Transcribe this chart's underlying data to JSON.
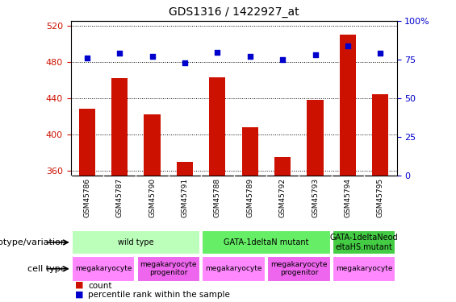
{
  "title": "GDS1316 / 1422927_at",
  "samples": [
    "GSM45786",
    "GSM45787",
    "GSM45790",
    "GSM45791",
    "GSM45788",
    "GSM45789",
    "GSM45792",
    "GSM45793",
    "GSM45794",
    "GSM45795"
  ],
  "count_values": [
    428,
    462,
    422,
    370,
    463,
    408,
    375,
    438,
    510,
    444
  ],
  "percentile_values": [
    76,
    79,
    77,
    73,
    80,
    77,
    75,
    78,
    84,
    79
  ],
  "ylim_left": [
    355,
    525
  ],
  "ylim_right": [
    0,
    100
  ],
  "yticks_left": [
    360,
    400,
    440,
    480,
    520
  ],
  "yticks_right": [
    0,
    25,
    50,
    75,
    100
  ],
  "bar_color": "#cc1100",
  "dot_color": "#0000cc",
  "genotype_groups": [
    {
      "label": "wild type",
      "start": 0,
      "end": 4,
      "color": "#bbffbb"
    },
    {
      "label": "GATA-1deltaN mutant",
      "start": 4,
      "end": 8,
      "color": "#66ee66"
    },
    {
      "label": "GATA-1deltaNeod\neltaHS.mutant",
      "start": 8,
      "end": 10,
      "color": "#44cc44"
    }
  ],
  "cell_type_groups": [
    {
      "label": "megakaryocyte",
      "start": 0,
      "end": 2,
      "color": "#ff88ff"
    },
    {
      "label": "megakaryocyte\nprogenitor",
      "start": 2,
      "end": 4,
      "color": "#ee66ee"
    },
    {
      "label": "megakaryocyte",
      "start": 4,
      "end": 6,
      "color": "#ff88ff"
    },
    {
      "label": "megakaryocyte\nprogenitor",
      "start": 6,
      "end": 8,
      "color": "#ee66ee"
    },
    {
      "label": "megakaryocyte",
      "start": 8,
      "end": 10,
      "color": "#ff88ff"
    }
  ],
  "legend_count_color": "#cc1100",
  "legend_dot_color": "#0000cc",
  "label_genotype": "genotype/variation",
  "label_celltype": "cell type",
  "xtick_bg": "#cccccc"
}
